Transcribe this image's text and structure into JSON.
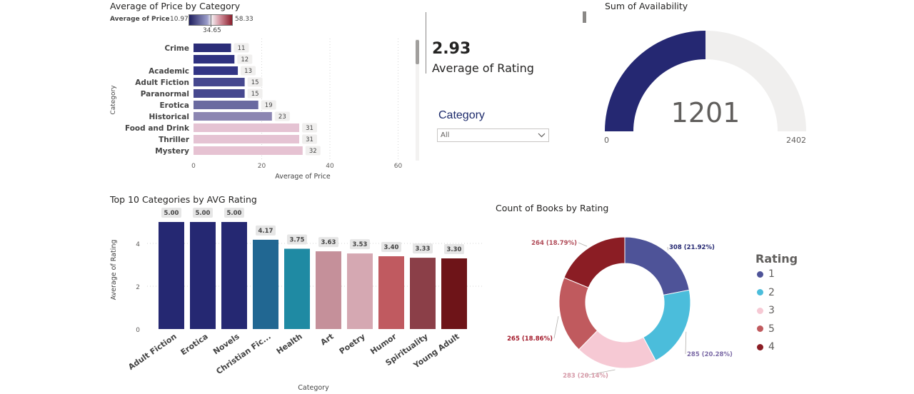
{
  "price_chart": {
    "title": "Average of Price by Category",
    "legend_label": "Average of Price",
    "legend_min": "10.97",
    "legend_max": "58.33",
    "legend_mid": "34.65"
  },
  "kpi": {
    "value": "2.93",
    "label": "Average of Rating"
  },
  "slicer": {
    "title": "Category",
    "value": "All"
  },
  "gauge": {
    "title": "Sum of Availability",
    "value_text": "1201",
    "min_text": "0",
    "max_text": "2402"
  },
  "rating_chart": {
    "title": "Top 10 Categories by AVG Rating"
  },
  "donut": {
    "title": "Count of Books by Rating",
    "legend_title": "Rating"
  },
  "colors": {
    "navy": "#252872",
    "gauge_track": "#f0efee"
  },
  "chart_data": [
    {
      "type": "bar",
      "orientation": "horizontal",
      "title": "Average of Price by Category",
      "xlabel": "Average of Price",
      "ylabel": "Category",
      "xlim": [
        0,
        60
      ],
      "xticks": [
        0,
        20,
        40,
        60
      ],
      "categories": [
        "Crime",
        "",
        "Academic",
        "Adult Fiction",
        "Paranormal",
        "Erotica",
        "Historical",
        "Food and Drink",
        "Thriller",
        "Mystery"
      ],
      "values": [
        11,
        12,
        13,
        15,
        15,
        19,
        23,
        31,
        31,
        32
      ],
      "data_labels": [
        "11",
        "12",
        "13",
        "15",
        "15",
        "19",
        "23",
        "31",
        "31",
        "32"
      ],
      "colors": [
        "#2b2d78",
        "#2f3180",
        "#333585",
        "#46488f",
        "#46488f",
        "#6a6aa0",
        "#8c86b2",
        "#e5c3d3",
        "#e5c3d3",
        "#e6c2d2"
      ]
    },
    {
      "type": "bar",
      "title": "Top 10 Categories by AVG Rating",
      "xlabel": "Category",
      "ylabel": "Average of Rating",
      "ylim": [
        0,
        5
      ],
      "yticks": [
        0,
        2,
        4
      ],
      "categories": [
        "Adult Fiction",
        "Erotica",
        "Novels",
        "Christian Fic...",
        "Health",
        "Art",
        "Poetry",
        "Humor",
        "Spirituality",
        "Young Adult"
      ],
      "values": [
        5.0,
        5.0,
        5.0,
        4.17,
        3.75,
        3.63,
        3.53,
        3.4,
        3.33,
        3.3
      ],
      "data_labels": [
        "5.00",
        "5.00",
        "5.00",
        "4.17",
        "3.75",
        "3.63",
        "3.53",
        "3.40",
        "3.33",
        "3.30"
      ],
      "colors": [
        "#252872",
        "#252872",
        "#252872",
        "#216792",
        "#1f8aa3",
        "#c5909a",
        "#d5a8b2",
        "#c05a60",
        "#8b3f48",
        "#6e1418"
      ]
    },
    {
      "type": "pie",
      "variant": "donut",
      "title": "Count of Books by Rating",
      "legend_title": "Rating",
      "legend_placement": "right",
      "slices": [
        {
          "name": "1",
          "value": 308,
          "label": "308 (21.92%)",
          "color": "#4e5398",
          "label_color": "#252872"
        },
        {
          "name": "2",
          "value": 285,
          "label": "285 (20.28%)",
          "color": "#4bbddb",
          "label_color": "#7b6aa6"
        },
        {
          "name": "3",
          "value": 283,
          "label": "283 (20.14%)",
          "color": "#f6c9d4",
          "label_color": "#d69aa8"
        },
        {
          "name": "5",
          "value": 265,
          "label": "265 (18.86%)",
          "color": "#c05a5e",
          "label_color": "#a3192a"
        },
        {
          "name": "4",
          "value": 264,
          "label": "264 (18.79%)",
          "color": "#8b1d24",
          "label_color": "#b04a57"
        }
      ]
    },
    {
      "type": "gauge",
      "title": "Sum of Availability",
      "value": 1201,
      "min": 0,
      "max": 2402
    }
  ]
}
